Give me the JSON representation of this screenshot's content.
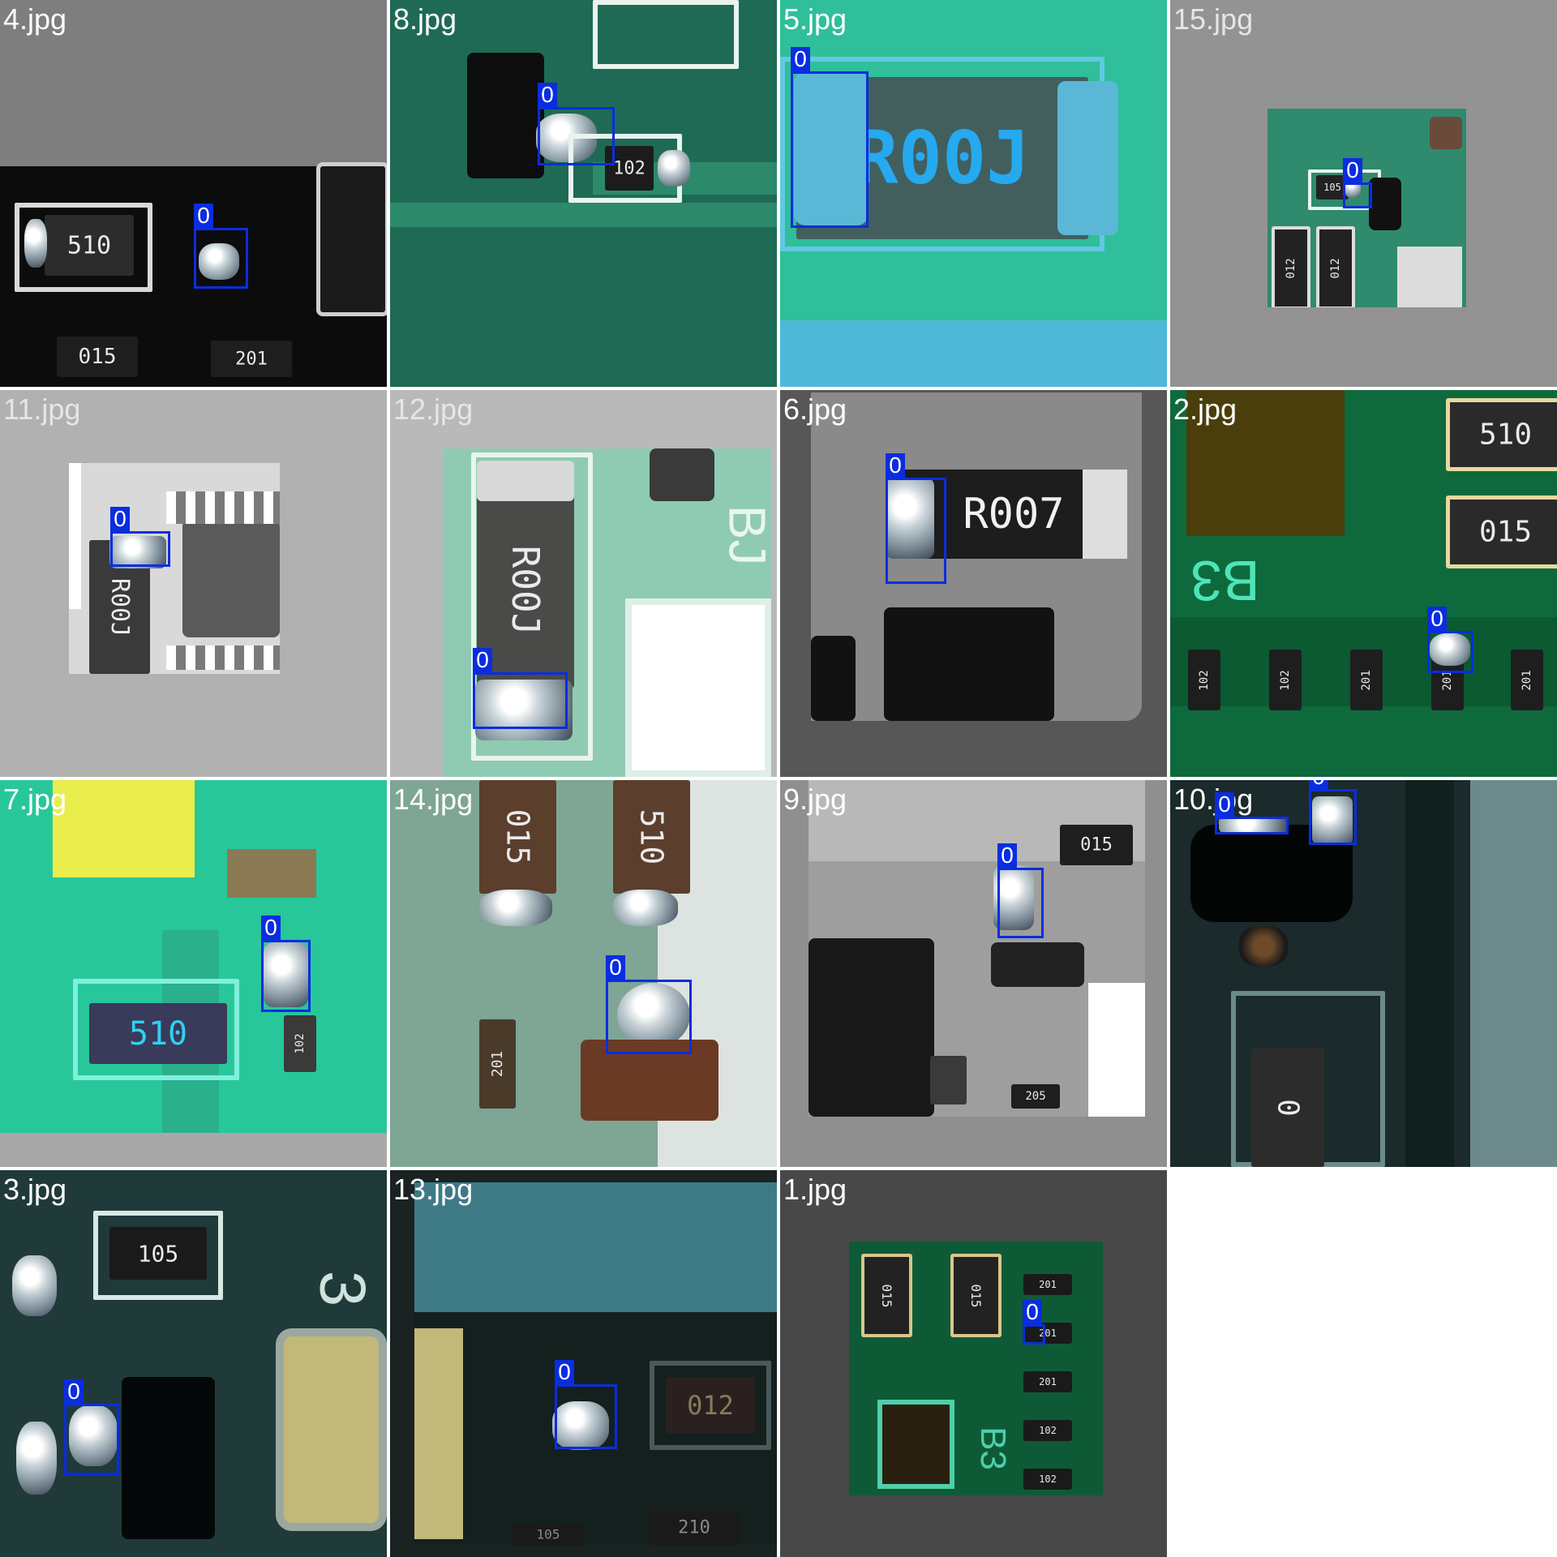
{
  "tiles": [
    {
      "label": "4.jpg",
      "class": "0"
    },
    {
      "label": "8.jpg",
      "class": "0"
    },
    {
      "label": "5.jpg",
      "class": "0"
    },
    {
      "label": "15.jpg",
      "class": "0"
    },
    {
      "label": "11.jpg",
      "class": "0"
    },
    {
      "label": "12.jpg",
      "class": "0"
    },
    {
      "label": "6.jpg",
      "class": "0"
    },
    {
      "label": "2.jpg",
      "class": "0"
    },
    {
      "label": "7.jpg",
      "class": "0"
    },
    {
      "label": "14.jpg",
      "class": "0"
    },
    {
      "label": "9.jpg",
      "class": "0"
    },
    {
      "label": "10.jpg",
      "class": "0",
      "class2": "0"
    },
    {
      "label": "3.jpg",
      "class": "0"
    },
    {
      "label": "13.jpg",
      "class": "0"
    },
    {
      "label": "1.jpg",
      "class": "0"
    }
  ],
  "component_codes": {
    "t4": [
      "510",
      "015",
      "201"
    ],
    "t8": [
      "102"
    ],
    "t5": [
      "R00J"
    ],
    "t15": [
      "105",
      "012",
      "012"
    ],
    "t11": [
      "R00J"
    ],
    "t12": [
      "R00J",
      "BJ"
    ],
    "t6": [
      "R007"
    ],
    "t2": [
      "510",
      "015",
      "B3",
      "102",
      "102",
      "201",
      "201",
      "201"
    ],
    "t7": [
      "510",
      "102"
    ],
    "t14": [
      "015",
      "510",
      "201"
    ],
    "t9": [
      "015",
      "205"
    ],
    "t10": [
      "0"
    ],
    "t3": [
      "105",
      "3"
    ],
    "t13": [
      "012",
      "210",
      "105"
    ],
    "t1": [
      "015",
      "015",
      "201",
      "201",
      "201",
      "102",
      "102",
      "B3"
    ]
  }
}
